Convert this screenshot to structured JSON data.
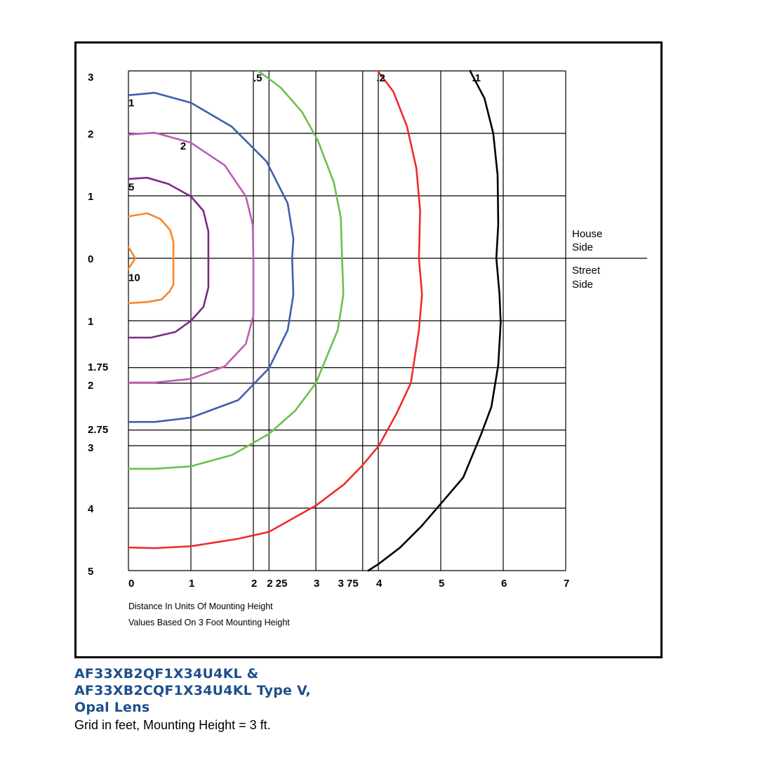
{
  "chart_data": {
    "type": "line",
    "subtype": "isofootcandle contour plot",
    "xlabel_lines": [
      "Distance In Units Of Mounting Height",
      "Values Based On 3 Foot Mounting Height"
    ],
    "xlim": [
      0,
      7
    ],
    "ylim": [
      -5,
      3
    ],
    "grid": true,
    "x_ticks": [
      {
        "value": 0,
        "label": "0"
      },
      {
        "value": 1,
        "label": "1"
      },
      {
        "value": 2,
        "label": "2"
      },
      {
        "value": 2.25,
        "label": "2 25"
      },
      {
        "value": 3,
        "label": "3"
      },
      {
        "value": 3.75,
        "label": "3 75"
      },
      {
        "value": 4,
        "label": "4"
      },
      {
        "value": 5,
        "label": "5"
      },
      {
        "value": 6,
        "label": "6"
      },
      {
        "value": 7,
        "label": "7"
      }
    ],
    "y_ticks": [
      {
        "value": 3,
        "label": "3"
      },
      {
        "value": 2,
        "label": "2"
      },
      {
        "value": 1,
        "label": "1"
      },
      {
        "value": 0,
        "label": "0"
      },
      {
        "value": -1,
        "label": "1"
      },
      {
        "value": -1.75,
        "label": "1.75"
      },
      {
        "value": -2,
        "label": "2"
      },
      {
        "value": -2.75,
        "label": "2.75"
      },
      {
        "value": -3,
        "label": "3"
      },
      {
        "value": -4,
        "label": "4"
      },
      {
        "value": -5,
        "label": "5"
      }
    ],
    "side_labels": {
      "house": [
        "House",
        "Side"
      ],
      "street": [
        "Street",
        "Side"
      ]
    },
    "series": [
      {
        "name": "10",
        "color": "#f7872a",
        "label_at": [
          0,
          -0.3
        ],
        "segments": [
          [
            [
              0,
              0.18
            ],
            [
              0.11,
              0
            ],
            [
              0,
              -0.17
            ]
          ],
          [
            [
              0,
              0.67
            ],
            [
              0.3,
              0.72
            ],
            [
              0.51,
              0.63
            ],
            [
              0.67,
              0.45
            ],
            [
              0.72,
              0.26
            ],
            [
              0.72,
              -0.42
            ],
            [
              0.66,
              -0.53
            ],
            [
              0.53,
              -0.66
            ],
            [
              0.3,
              -0.7
            ],
            [
              0,
              -0.72
            ]
          ]
        ]
      },
      {
        "name": "5",
        "color": "#7b2a86",
        "label_at": [
          0,
          1.15
        ],
        "segments": [
          [
            [
              0,
              1.27
            ],
            [
              0.3,
              1.29
            ],
            [
              0.64,
              1.19
            ],
            [
              1,
              0.99
            ],
            [
              1.2,
              0.76
            ],
            [
              1.28,
              0.43
            ],
            [
              1.28,
              -0.47
            ],
            [
              1.2,
              -0.78
            ],
            [
              1,
              -1
            ],
            [
              0.75,
              -1.18
            ],
            [
              0.36,
              -1.27
            ],
            [
              0,
              -1.27
            ]
          ]
        ]
      },
      {
        "name": "2",
        "color": "#bd5cb5",
        "label_at": [
          0.83,
          1.81
        ],
        "segments": [
          [
            [
              0,
              1.98
            ],
            [
              0.42,
              2.01
            ],
            [
              1,
              1.85
            ],
            [
              1.54,
              1.49
            ],
            [
              1.88,
              0.99
            ],
            [
              1.99,
              0.54
            ],
            [
              2,
              0
            ],
            [
              2,
              -0.92
            ],
            [
              1.88,
              -1.37
            ],
            [
              1.54,
              -1.73
            ],
            [
              1,
              -1.93
            ],
            [
              0.42,
              -1.99
            ],
            [
              0,
              -1.99
            ]
          ]
        ]
      },
      {
        "name": "1",
        "color": "#3d5fad",
        "label_at": [
          0,
          2.5
        ],
        "segments": [
          [
            [
              0,
              2.61
            ],
            [
              0.42,
              2.65
            ],
            [
              1,
              2.49
            ],
            [
              1.65,
              2.11
            ],
            [
              2.21,
              1.55
            ],
            [
              2.55,
              0.88
            ],
            [
              2.64,
              0.31
            ],
            [
              2.62,
              0
            ],
            [
              2.64,
              -0.58
            ],
            [
              2.55,
              -1.15
            ],
            [
              2.25,
              -1.76
            ],
            [
              1.76,
              -2.27
            ],
            [
              1,
              -2.55
            ],
            [
              0.42,
              -2.62
            ],
            [
              0,
              -2.62
            ]
          ]
        ]
      },
      {
        "name": ".5",
        "color": "#6cc04a",
        "label_at": [
          2.0,
          2.9
        ],
        "segments": [
          [
            [
              2.08,
              3
            ],
            [
              2.44,
              2.73
            ],
            [
              2.78,
              2.34
            ],
            [
              3.03,
              1.89
            ],
            [
              3.29,
              1.21
            ],
            [
              3.4,
              0.65
            ],
            [
              3.42,
              0
            ],
            [
              3.44,
              -0.58
            ],
            [
              3.35,
              -1.15
            ],
            [
              3,
              -2
            ],
            [
              2.67,
              -2.44
            ],
            [
              2.25,
              -2.81
            ],
            [
              1.66,
              -3.15
            ],
            [
              1,
              -3.33
            ],
            [
              0.42,
              -3.37
            ],
            [
              0,
              -3.37
            ]
          ]
        ]
      },
      {
        "name": ".2",
        "color": "#ee2b2e",
        "label_at": [
          3.97,
          2.9
        ],
        "segments": [
          [
            [
              3.99,
              3
            ],
            [
              4.24,
              2.67
            ],
            [
              4.46,
              2.11
            ],
            [
              4.61,
              1.44
            ],
            [
              4.67,
              0.76
            ],
            [
              4.65,
              0
            ],
            [
              4.7,
              -0.58
            ],
            [
              4.65,
              -1.15
            ],
            [
              4.52,
              -2
            ],
            [
              4.29,
              -2.49
            ],
            [
              4.01,
              -3
            ],
            [
              3.75,
              -3.31
            ],
            [
              3.45,
              -3.62
            ],
            [
              3,
              -3.96
            ],
            [
              2.25,
              -4.38
            ],
            [
              1.76,
              -4.49
            ],
            [
              1,
              -4.61
            ],
            [
              0.42,
              -4.64
            ],
            [
              0,
              -4.63
            ]
          ]
        ]
      },
      {
        "name": ".1",
        "color": "#000000",
        "label_at": [
          5.5,
          2.9
        ],
        "segments": [
          [
            [
              5.47,
              3
            ],
            [
              5.7,
              2.56
            ],
            [
              5.84,
              2
            ],
            [
              5.91,
              1.33
            ],
            [
              5.92,
              0.54
            ],
            [
              5.89,
              0
            ],
            [
              5.94,
              -0.58
            ],
            [
              5.96,
              -1.03
            ],
            [
              5.92,
              -1.71
            ],
            [
              5.81,
              -2.38
            ],
            [
              5.64,
              -2.83
            ],
            [
              5.36,
              -3.51
            ],
            [
              5,
              -3.93
            ],
            [
              4.69,
              -4.29
            ],
            [
              4.35,
              -4.63
            ],
            [
              4.01,
              -4.89
            ],
            [
              3.84,
              -5
            ]
          ]
        ]
      }
    ]
  },
  "caption": {
    "title_lines": [
      "AF33XB2QF1X34U4KL &",
      "AF33XB2CQF1X34U4KL Type V,",
      "Opal Lens"
    ],
    "subtitle": "Grid in feet, Mounting Height = 3 ft."
  }
}
